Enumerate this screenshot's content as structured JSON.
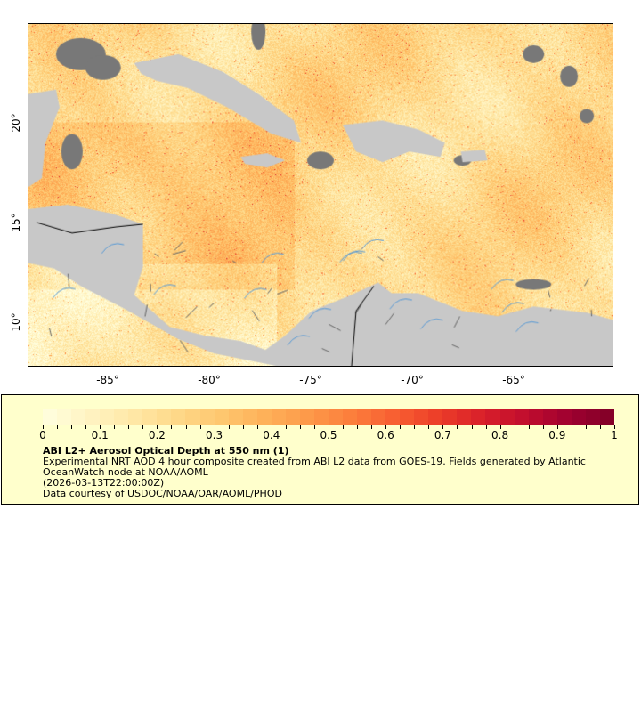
{
  "map": {
    "lon_ticks": [
      "-85°",
      "-80°",
      "-75°",
      "-70°",
      "-65°"
    ],
    "lat_ticks": [
      "20°",
      "15°",
      "10°"
    ],
    "land_color": "#c8c8c8",
    "nodata_color": "#787878",
    "border_color": "#000000",
    "river_color": "#5b9bd5"
  },
  "legend": {
    "colorbar_min": 0,
    "colorbar_max": 1,
    "tick_labels": [
      "0",
      "0.1",
      "0.2",
      "0.3",
      "0.4",
      "0.5",
      "0.6",
      "0.7",
      "0.8",
      "0.9",
      "1"
    ],
    "colors": [
      "#ffffe0",
      "#fff4c4",
      "#ffe9a8",
      "#fed98a",
      "#fec870",
      "#feb25a",
      "#fd9a4a",
      "#fc7f3c",
      "#f85f32",
      "#ec3e28",
      "#d9202a",
      "#c00d2e",
      "#9e0030",
      "#800026"
    ],
    "title": "ABI L2+ Aerosol Optical Depth at 550 nm (1)",
    "line1": "Experimental NRT AOD 4 hour composite created from ABI L2 data from GOES-19. Fields generated by Atlantic",
    "line2": "OceanWatch node at NOAA/AOML",
    "line3": "(2026-03-13T22:00:00Z)",
    "line4": "Data courtesy of USDOC/NOAA/OAR/AOML/PHOD"
  }
}
